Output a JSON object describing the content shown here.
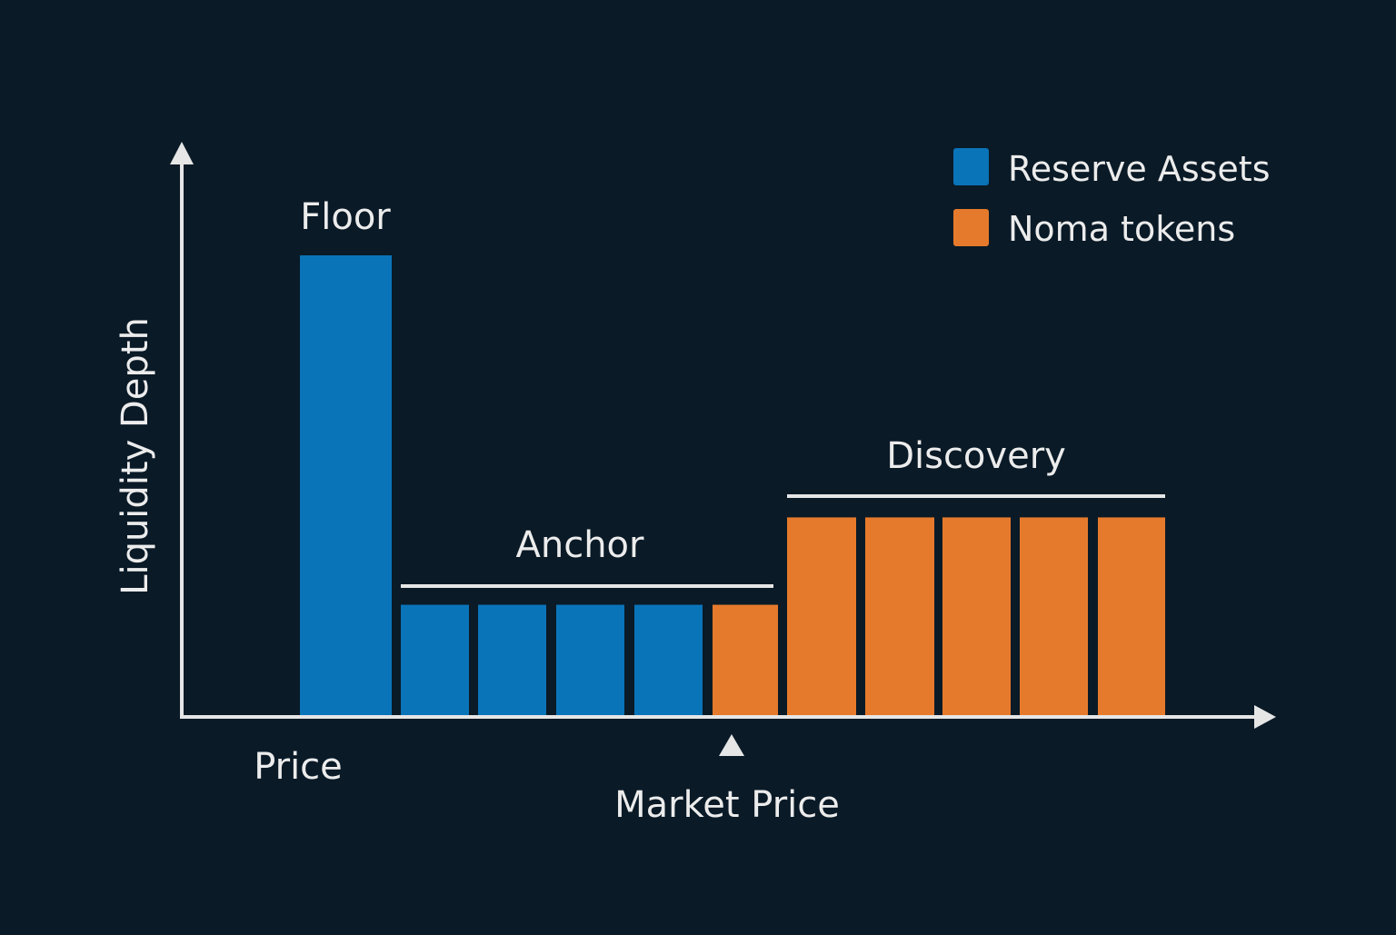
{
  "colors": {
    "background": "#0a1a27",
    "axis": "#e6e6e6",
    "text": "#ececec",
    "reserve": "#0a74b9",
    "noma": "#e67a2c"
  },
  "legend": {
    "placement": "top-right",
    "items": [
      {
        "key": "reserve",
        "label": "Reserve Assets"
      },
      {
        "key": "noma",
        "label": "Noma tokens"
      }
    ]
  },
  "axes": {
    "y_label": "Liquidity Depth",
    "x_label": "Price"
  },
  "market_price": {
    "label": "Market Price",
    "marker_icon": "triangle-up-icon"
  },
  "chart_data": {
    "type": "bar",
    "title": "",
    "xlabel": "Price",
    "ylabel": "Liquidity Depth",
    "grid": false,
    "legend": "top-right",
    "ylim": [
      0,
      1
    ],
    "ranges": [
      {
        "name": "Floor",
        "bars": [
          {
            "asset": "reserve",
            "value": 1.0
          }
        ]
      },
      {
        "name": "Anchor",
        "bars": [
          {
            "asset": "reserve",
            "value": 0.24
          },
          {
            "asset": "reserve",
            "value": 0.24
          },
          {
            "asset": "reserve",
            "value": 0.24
          },
          {
            "asset": "reserve",
            "value": 0.24
          },
          {
            "asset": "noma",
            "value": 0.24
          }
        ]
      },
      {
        "name": "Discovery",
        "bars": [
          {
            "asset": "noma",
            "value": 0.43
          },
          {
            "asset": "noma",
            "value": 0.43
          },
          {
            "asset": "noma",
            "value": 0.43
          },
          {
            "asset": "noma",
            "value": 0.43
          },
          {
            "asset": "noma",
            "value": 0.43
          }
        ]
      }
    ]
  }
}
